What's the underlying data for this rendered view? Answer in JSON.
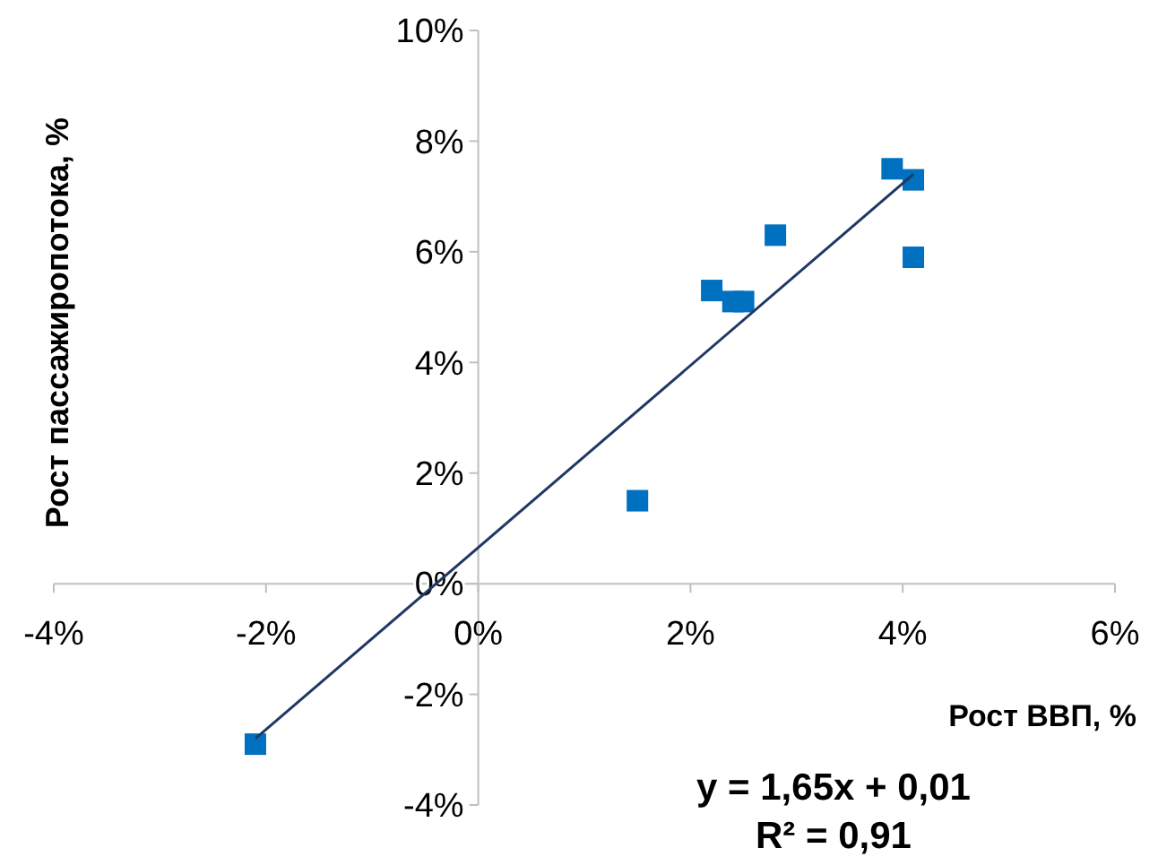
{
  "chart_data": {
    "type": "scatter",
    "xlabel": "Рост ВВП, %",
    "ylabel": "Рост пассажиропотока, %",
    "xlim": [
      -4,
      6
    ],
    "xticks": [
      {
        "value": -4,
        "label": "-4%"
      },
      {
        "value": -2,
        "label": "-2%"
      },
      {
        "value": 0,
        "label": "0%"
      },
      {
        "value": 2,
        "label": "2%"
      },
      {
        "value": 4,
        "label": "4%"
      },
      {
        "value": 6,
        "label": "6%"
      }
    ],
    "ylim": [
      -4,
      10
    ],
    "yticks": [
      {
        "value": -4,
        "label": "-4%"
      },
      {
        "value": -2,
        "label": "-2%"
      },
      {
        "value": 0,
        "label": "0%"
      },
      {
        "value": 2,
        "label": "2%"
      },
      {
        "value": 4,
        "label": "4%"
      },
      {
        "value": 6,
        "label": "6%"
      },
      {
        "value": 8,
        "label": "8%"
      },
      {
        "value": 10,
        "label": "10%"
      }
    ],
    "grid": false,
    "series": [
      {
        "type": "scatter",
        "marker": "square",
        "color": "#0070c0",
        "x": [
          -2.1,
          1.5,
          2.2,
          2.4,
          2.5,
          2.8,
          3.9,
          4.1,
          4.1
        ],
        "values": [
          -2.9,
          1.5,
          5.3,
          5.1,
          5.1,
          6.3,
          7.5,
          7.3,
          5.9
        ]
      },
      {
        "type": "line",
        "marker": "none",
        "color": "#1f3864",
        "x": [
          -2.1,
          4.1
        ],
        "values": [
          -2.8,
          7.4
        ]
      }
    ],
    "annotations": [
      "y = 1,65x + 0,01",
      "R² = 0,91"
    ]
  }
}
